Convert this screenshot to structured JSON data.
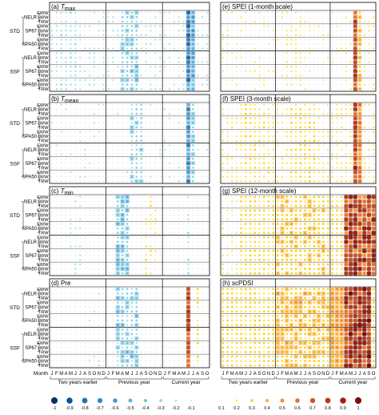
{
  "chart_data": {
    "type": "heatmap",
    "panels": [
      {
        "label": "(a)",
        "name": "T",
        "subscript": "max"
      },
      {
        "label": "(b)",
        "name": "T",
        "subscript": "mean"
      },
      {
        "label": "(c)",
        "name": "T",
        "subscript": "min"
      },
      {
        "label": "(d)",
        "name": "Pre",
        "subscript": ""
      },
      {
        "label": "(e)",
        "name": "SPEI (1-month scale)",
        "subscript": ""
      },
      {
        "label": "(f)",
        "name": "SPEI (3-month scale)",
        "subscript": ""
      },
      {
        "label": "(g)",
        "name": "SPEI (12-month scale)",
        "subscript": ""
      },
      {
        "label": "(h)",
        "name": "scPDSI",
        "subscript": ""
      }
    ],
    "sites": [
      "STD",
      "SSF"
    ],
    "methods": [
      "NELR",
      "SP67",
      "SPA50"
    ],
    "indices": [
      "EWW",
      "LWW",
      "TRW"
    ],
    "x_axis": {
      "label": "Month",
      "months": [
        "J",
        "F",
        "M",
        "A",
        "M",
        "J",
        "J",
        "A",
        "S",
        "O",
        "N",
        "D",
        "J",
        "F",
        "M",
        "A",
        "M",
        "J",
        "J",
        "A",
        "S",
        "O",
        "N",
        "D",
        "J",
        "F",
        "M",
        "A",
        "M",
        "J",
        "J",
        "A",
        "S",
        "O"
      ],
      "groups": [
        {
          "name": "Two years earlier",
          "from": 0,
          "to": 11
        },
        {
          "name": "Previous year",
          "from": 12,
          "to": 23
        },
        {
          "name": "Current year",
          "from": 24,
          "to": 33
        }
      ]
    },
    "colorbar": {
      "negative_labels": [
        "-1",
        "-0.9",
        "-0.8",
        "-0.7",
        "-0.6",
        "-0.5",
        "-0.4",
        "-0.3",
        "-0.2",
        "-0.1"
      ],
      "positive_labels": [
        "0.1",
        "0.2",
        "0.3",
        "0.4",
        "0.5",
        "0.6",
        "0.7",
        "0.8",
        "0.9",
        "1"
      ],
      "negative_colors": [
        "#08306b",
        "#08519c",
        "#2171b5",
        "#3787c0",
        "#4a9ad0",
        "#63b0dc",
        "#78c5e0",
        "#8fd6e4",
        "#a8e4ec",
        "#c6eef3"
      ],
      "positive_colors": [
        "#fff4a8",
        "#ffe45c",
        "#ffd21f",
        "#fbb02b",
        "#f29130",
        "#e4702a",
        "#d4501f",
        "#be3518",
        "#a11e12",
        "#7f0d0a"
      ]
    },
    "correlation_pattern_summary": {
      "T_max": {
        "sign": "negative",
        "strong_months": [
          "Previous year M",
          "Previous year J",
          "Current year J",
          "Current year J"
        ]
      },
      "T_mean": {
        "sign": "negative",
        "strong_months": [
          "Previous year J",
          "Current year J"
        ]
      },
      "T_min": {
        "sign": "mixed",
        "strong_months": [
          "Previous year M",
          "Previous year A"
        ]
      },
      "Pre": {
        "sign": "mixed",
        "strong_months": [
          "Current year J"
        ]
      },
      "SPEI_1": {
        "sign": "positive",
        "strong_months": [
          "Current year J"
        ]
      },
      "SPEI_3": {
        "sign": "positive",
        "strong_months": [
          "Current year J"
        ]
      },
      "SPEI_12": {
        "sign": "positive",
        "strong_months": [
          "Current year J",
          "Current year J",
          "Current year A"
        ]
      },
      "scPDSI": {
        "sign": "positive",
        "strong_months": [
          "Current year M",
          "Current year J",
          "Current year J"
        ]
      }
    }
  }
}
